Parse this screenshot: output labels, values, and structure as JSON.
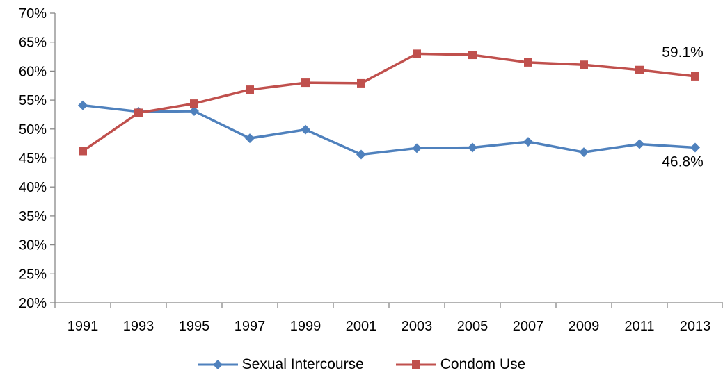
{
  "chart_data": {
    "type": "line",
    "categories": [
      "1991",
      "1993",
      "1995",
      "1997",
      "1999",
      "2001",
      "2003",
      "2005",
      "2007",
      "2009",
      "2011",
      "2013"
    ],
    "series": [
      {
        "name": "Sexual Intercourse",
        "color": "#4F81BD",
        "marker": "diamond",
        "values": [
          54.1,
          53.0,
          53.1,
          48.4,
          49.9,
          45.6,
          46.7,
          46.8,
          47.8,
          46.0,
          47.4,
          46.8
        ]
      },
      {
        "name": "Condom Use",
        "color": "#C0504D",
        "marker": "square",
        "values": [
          46.2,
          52.8,
          54.4,
          56.8,
          58.0,
          57.9,
          63.0,
          62.8,
          61.5,
          61.1,
          60.2,
          59.1
        ]
      }
    ],
    "ylim": [
      20,
      70
    ],
    "yticks": [
      "20%",
      "25%",
      "30%",
      "35%",
      "40%",
      "45%",
      "50%",
      "55%",
      "60%",
      "65%",
      "70%"
    ],
    "grid": false,
    "legend": "bottom",
    "annotations": [
      {
        "series": 1,
        "index": 11,
        "text": "59.1%",
        "position": "above"
      },
      {
        "series": 0,
        "index": 11,
        "text": "46.8%",
        "position": "below"
      }
    ]
  }
}
